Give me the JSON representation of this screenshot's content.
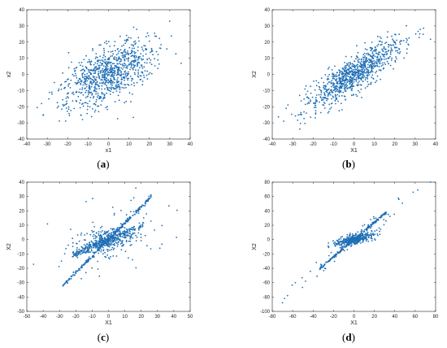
{
  "chart_data": [
    {
      "type": "scatter",
      "panel_label": "a",
      "xlabel": "x1",
      "ylabel": "x2",
      "xlim": [
        -40,
        40
      ],
      "ylim": [
        -40,
        40
      ],
      "xticks": [
        -40,
        -30,
        -20,
        -10,
        0,
        10,
        20,
        30,
        40
      ],
      "yticks": [
        -40,
        -30,
        -20,
        -10,
        0,
        10,
        20,
        30,
        40
      ],
      "color": "#1f6fb5",
      "point_count": 900,
      "description_of_cloud": "elliptical cloud along x2 ≈ 0.85·x1, spread ±12"
    },
    {
      "type": "scatter",
      "panel_label": "b",
      "xlabel": "X1",
      "ylabel": "X2",
      "xlim": [
        -40,
        40
      ],
      "ylim": [
        -40,
        40
      ],
      "xticks": [
        -40,
        -30,
        -20,
        -10,
        0,
        10,
        20,
        30,
        40
      ],
      "yticks": [
        -40,
        -30,
        -20,
        -10,
        0,
        10,
        20,
        30,
        40
      ],
      "color": "#1f6fb5",
      "point_count": 900
    },
    {
      "type": "scatter",
      "panel_label": "c",
      "xlabel": "X1",
      "ylabel": "X2",
      "xlim": [
        -50,
        50
      ],
      "ylim": [
        -50,
        40
      ],
      "xticks": [
        -50,
        -40,
        -30,
        -20,
        -10,
        0,
        10,
        20,
        30,
        40,
        50
      ],
      "yticks": [
        -50,
        -40,
        -30,
        -20,
        -10,
        0,
        10,
        20,
        30,
        40
      ],
      "color": "#1f6fb5",
      "point_count": 900
    },
    {
      "type": "scatter",
      "panel_label": "d",
      "xlabel": "X1",
      "ylabel": "X2",
      "xlim": [
        -80,
        80
      ],
      "ylim": [
        -100,
        80
      ],
      "xticks": [
        -80,
        -60,
        -40,
        -20,
        0,
        20,
        40,
        60,
        80
      ],
      "yticks": [
        -100,
        -80,
        -60,
        -40,
        -20,
        0,
        20,
        40,
        60,
        80
      ],
      "color": "#1f6fb5",
      "point_count": 700
    }
  ],
  "captions": [
    {
      "open": "(",
      "letter": "a",
      "close": ")"
    },
    {
      "open": "(",
      "letter": "b",
      "close": ")"
    },
    {
      "open": "(",
      "letter": "c",
      "close": ")"
    },
    {
      "open": "(",
      "letter": "d",
      "close": ")"
    }
  ]
}
